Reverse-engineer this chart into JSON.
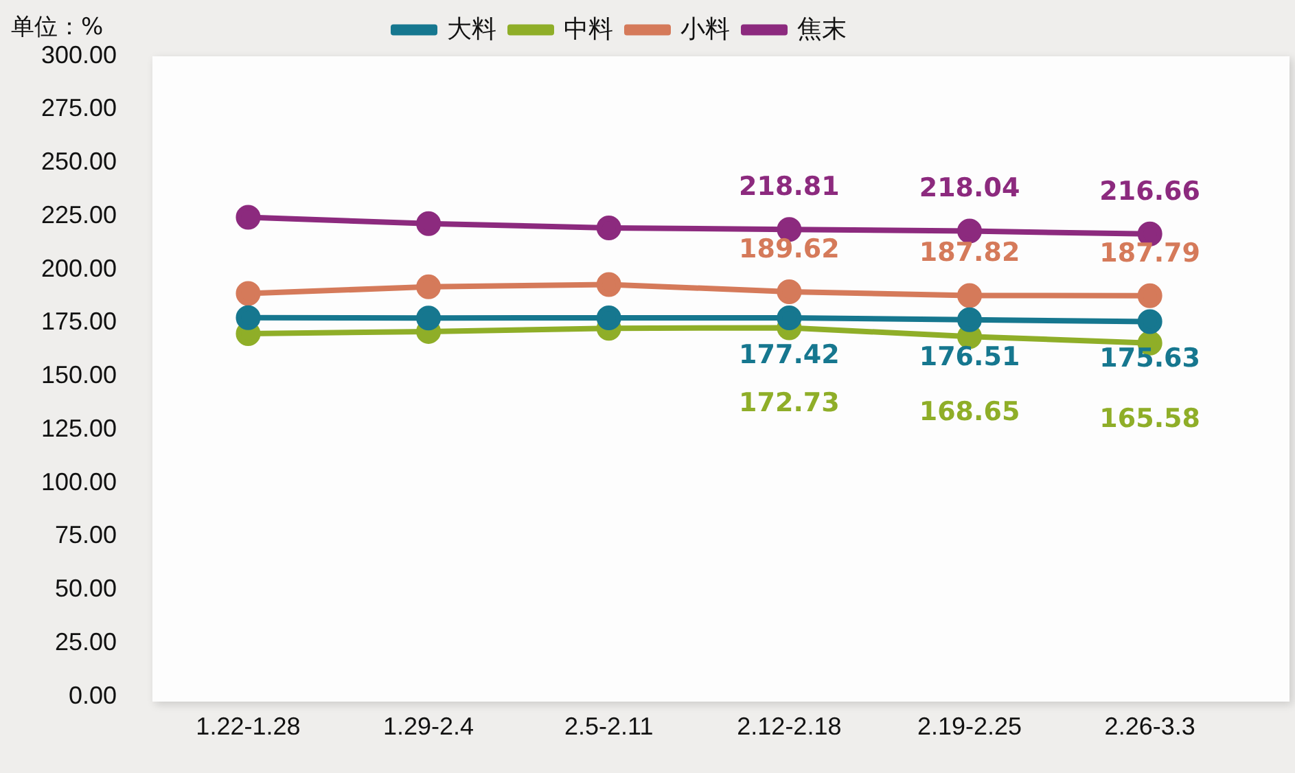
{
  "chart_data": {
    "type": "line",
    "ylabel": "单位：%",
    "categories": [
      "1.22-1.28",
      "1.29-2.4",
      "2.5-2.11",
      "2.12-2.18",
      "2.19-2.25",
      "2.26-3.3"
    ],
    "series": [
      {
        "name": "大料",
        "color": "#16778f",
        "values": [
          177.5,
          177.3,
          177.4,
          177.42,
          176.51,
          175.63
        ],
        "value_labels": [
          null,
          null,
          null,
          "177.42",
          "176.51",
          "175.63"
        ]
      },
      {
        "name": "中料",
        "color": "#8fae28",
        "values": [
          170,
          171,
          172.5,
          172.73,
          168.65,
          165.58
        ],
        "value_labels": [
          null,
          null,
          null,
          "172.73",
          "168.65",
          "165.58"
        ]
      },
      {
        "name": "小料",
        "color": "#d57a5a",
        "values": [
          188.8,
          191.9,
          193,
          189.62,
          187.82,
          187.79
        ],
        "value_labels": [
          null,
          null,
          null,
          "189.62",
          "187.82",
          "187.79"
        ]
      },
      {
        "name": "焦末",
        "color": "#8c2a7e",
        "values": [
          224.5,
          221.5,
          219.5,
          218.81,
          218.04,
          216.66
        ],
        "value_labels": [
          null,
          null,
          null,
          "218.81",
          "218.04",
          "216.66"
        ]
      }
    ],
    "ylim": [
      0,
      300
    ],
    "yticks": [
      {
        "value": 0,
        "label": "0.00"
      },
      {
        "value": 25,
        "label": "25.00"
      },
      {
        "value": 50,
        "label": "50.00"
      },
      {
        "value": 75,
        "label": "75.00"
      },
      {
        "value": 100,
        "label": "100.00"
      },
      {
        "value": 125,
        "label": "125.00"
      },
      {
        "value": 150,
        "label": "150.00"
      },
      {
        "value": 175,
        "label": "175.00"
      },
      {
        "value": 200,
        "label": "200.00"
      },
      {
        "value": 225,
        "label": "225.00"
      },
      {
        "value": 250,
        "label": "250.00"
      },
      {
        "value": 275,
        "label": "275.00"
      },
      {
        "value": 300,
        "label": "300.00"
      }
    ],
    "grid": false,
    "legend": "top",
    "marker": "circle",
    "line_style": "solid"
  }
}
